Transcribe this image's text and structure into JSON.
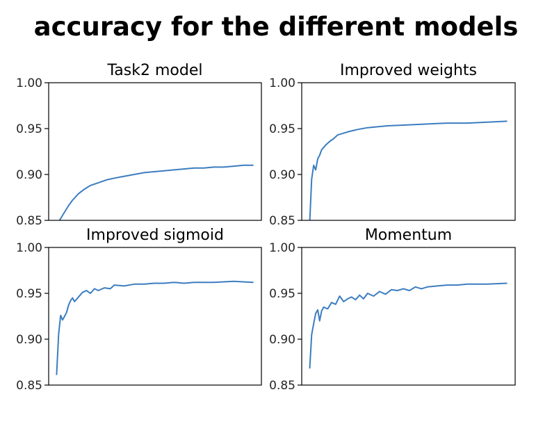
{
  "suptitle": "accuracy for the different models",
  "line_color": "#3b7dbf",
  "chart_data": [
    {
      "type": "line",
      "title": "Task2 model",
      "xlabel": "",
      "ylabel": "",
      "ylim": [
        0.85,
        1.0
      ],
      "yticks": [
        "0.85",
        "0.90",
        "0.95",
        "1.00"
      ],
      "xticks": [],
      "grid": false,
      "series": [
        {
          "x": [
            1,
            3,
            5,
            7,
            9,
            12,
            15,
            18,
            22,
            26,
            30,
            35,
            40,
            45,
            50,
            55,
            60,
            65,
            70,
            75,
            80,
            85,
            90,
            95,
            100
          ],
          "y": [
            0.845,
            0.852,
            0.859,
            0.866,
            0.872,
            0.879,
            0.884,
            0.888,
            0.891,
            0.894,
            0.896,
            0.898,
            0.9,
            0.902,
            0.903,
            0.904,
            0.905,
            0.906,
            0.907,
            0.907,
            0.908,
            0.908,
            0.909,
            0.91,
            0.91
          ]
        }
      ]
    },
    {
      "type": "line",
      "title": "Improved weights",
      "xlabel": "",
      "ylabel": "",
      "ylim": [
        0.85,
        1.0
      ],
      "yticks": [
        "0.85",
        "0.90",
        "0.95",
        "1.00"
      ],
      "xticks": [],
      "grid": false,
      "series": [
        {
          "x": [
            1,
            2,
            3,
            4,
            5,
            6,
            7,
            9,
            11,
            13,
            15,
            18,
            21,
            25,
            30,
            35,
            40,
            50,
            60,
            70,
            80,
            90,
            100
          ],
          "y": [
            0.848,
            0.895,
            0.91,
            0.905,
            0.917,
            0.921,
            0.927,
            0.932,
            0.936,
            0.939,
            0.943,
            0.945,
            0.947,
            0.949,
            0.951,
            0.952,
            0.953,
            0.954,
            0.955,
            0.956,
            0.956,
            0.957,
            0.958
          ]
        }
      ]
    },
    {
      "type": "line",
      "title": "Improved sigmoid",
      "xlabel": "",
      "ylabel": "",
      "ylim": [
        0.85,
        1.0
      ],
      "yticks": [
        "0.85",
        "0.90",
        "0.95",
        "1.00"
      ],
      "xticks": [],
      "grid": false,
      "series": [
        {
          "x": [
            1,
            2,
            3,
            4,
            5,
            6,
            7,
            8,
            9,
            10,
            12,
            14,
            16,
            18,
            20,
            22,
            25,
            28,
            30,
            35,
            40,
            45,
            50,
            55,
            60,
            65,
            70,
            80,
            90,
            100
          ],
          "y": [
            0.861,
            0.905,
            0.926,
            0.921,
            0.925,
            0.929,
            0.937,
            0.942,
            0.945,
            0.941,
            0.946,
            0.951,
            0.953,
            0.95,
            0.955,
            0.953,
            0.956,
            0.955,
            0.959,
            0.958,
            0.96,
            0.96,
            0.961,
            0.961,
            0.962,
            0.961,
            0.962,
            0.962,
            0.963,
            0.962
          ]
        }
      ]
    },
    {
      "type": "line",
      "title": "Momentum",
      "xlabel": "",
      "ylabel": "",
      "ylim": [
        0.85,
        1.0
      ],
      "yticks": [
        "0.85",
        "0.90",
        "0.95",
        "1.00"
      ],
      "xticks": [],
      "grid": false,
      "series": [
        {
          "x": [
            1,
            2,
            3,
            4,
            5,
            6,
            7,
            8,
            10,
            12,
            14,
            16,
            18,
            20,
            22,
            24,
            26,
            28,
            30,
            33,
            36,
            39,
            42,
            45,
            48,
            51,
            54,
            57,
            60,
            65,
            70,
            75,
            80,
            90,
            100
          ],
          "y": [
            0.868,
            0.905,
            0.917,
            0.928,
            0.932,
            0.92,
            0.931,
            0.935,
            0.933,
            0.94,
            0.938,
            0.947,
            0.941,
            0.944,
            0.946,
            0.943,
            0.948,
            0.944,
            0.95,
            0.947,
            0.952,
            0.949,
            0.954,
            0.953,
            0.955,
            0.953,
            0.957,
            0.955,
            0.957,
            0.958,
            0.959,
            0.959,
            0.96,
            0.96,
            0.961
          ]
        }
      ]
    }
  ]
}
